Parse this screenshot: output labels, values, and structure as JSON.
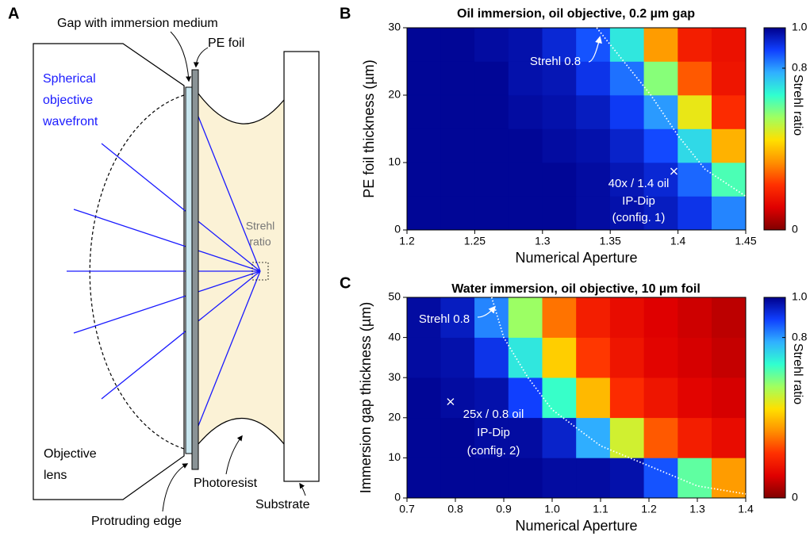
{
  "diagram": {
    "panel": "A",
    "labels": {
      "gap": "Gap with immersion medium",
      "foil": "PE foil",
      "wavefront": [
        "Spherical",
        "objective",
        "wavefront"
      ],
      "strehl": [
        "Strehl",
        "ratio"
      ],
      "lens": [
        "Objective",
        "lens"
      ],
      "photoresist": "Photoresist",
      "substrate": "Substrate",
      "edge": "Protruding edge"
    }
  },
  "chart_data": [
    {
      "type": "heatmap",
      "panel": "B",
      "title": "Oil immersion, oil objective, 0.2 µm gap",
      "xlabel": "Numerical Aperture",
      "ylabel": "PE foil thickness (µm)",
      "colorbar_label": "Strehl ratio",
      "colormap": [
        "#800000",
        "#e00000",
        "#ff3000",
        "#ff9000",
        "#ffe000",
        "#a0ff60",
        "#30ffd0",
        "#30b0ff",
        "#1040ff",
        "#00008c"
      ],
      "x": [
        1.2125,
        1.2375,
        1.2625,
        1.2875,
        1.3125,
        1.3375,
        1.3625,
        1.3875,
        1.4125,
        1.4375
      ],
      "y": [
        2.5,
        7.5,
        12.5,
        17.5,
        22.5,
        27.5
      ],
      "z": [
        [
          0.99,
          0.99,
          0.99,
          0.99,
          0.99,
          0.98,
          0.97,
          0.95,
          0.91,
          0.82
        ],
        [
          0.99,
          0.99,
          0.99,
          0.99,
          0.99,
          0.98,
          0.96,
          0.93,
          0.85,
          0.64
        ],
        [
          0.99,
          0.99,
          0.99,
          0.99,
          0.98,
          0.97,
          0.94,
          0.88,
          0.72,
          0.38
        ],
        [
          0.99,
          0.99,
          0.99,
          0.98,
          0.97,
          0.95,
          0.9,
          0.8,
          0.47,
          0.21
        ],
        [
          0.99,
          0.99,
          0.99,
          0.97,
          0.96,
          0.91,
          0.84,
          0.58,
          0.27,
          0.16
        ],
        [
          0.99,
          0.99,
          0.98,
          0.97,
          0.93,
          0.87,
          0.7,
          0.35,
          0.18,
          0.15
        ]
      ],
      "contour": {
        "x": [
          1.34,
          1.36,
          1.38,
          1.4,
          1.42,
          1.45
        ],
        "y": [
          30,
          25,
          20,
          14,
          9,
          5
        ]
      },
      "marker": {
        "x": 1.397,
        "y": 8.7
      },
      "annotations": [
        "Strehl 0.8",
        "40x / 1.4 oil",
        "IP-Dip",
        "(config. 1)"
      ],
      "xlim": [
        1.2,
        1.45
      ],
      "xticks": [
        1.2,
        1.25,
        1.3,
        1.35,
        1.4,
        1.45
      ],
      "ylim": [
        0,
        30
      ],
      "yticks": [
        0,
        10,
        20,
        30
      ],
      "clim": [
        0,
        1
      ],
      "cticks": [
        0,
        0.8,
        {
          "value": 1,
          "label": "1.0"
        }
      ]
    },
    {
      "type": "heatmap",
      "panel": "C",
      "title": "Water immersion, oil objective, 10 µm foil",
      "xlabel": "Numerical Aperture",
      "ylabel": "Immersion gap thickness (µm)",
      "colorbar_label": "Strehl ratio",
      "colormap": [
        "#800000",
        "#e00000",
        "#ff3000",
        "#ff9000",
        "#ffe000",
        "#a0ff60",
        "#30ffd0",
        "#30b0ff",
        "#1040ff",
        "#00008c"
      ],
      "x": [
        0.735,
        0.805,
        0.875,
        0.945,
        1.015,
        1.085,
        1.155,
        1.225,
        1.295,
        1.365
      ],
      "y": [
        5,
        15,
        25,
        35,
        45
      ],
      "z": [
        [
          0.99,
          0.99,
          0.99,
          0.99,
          0.98,
          0.98,
          0.97,
          0.87,
          0.62,
          0.35
        ],
        [
          0.99,
          0.99,
          0.98,
          0.98,
          0.94,
          0.78,
          0.5,
          0.27,
          0.18,
          0.14
        ],
        [
          0.99,
          0.98,
          0.97,
          0.89,
          0.66,
          0.39,
          0.21,
          0.16,
          0.12,
          0.1
        ],
        [
          0.98,
          0.97,
          0.91,
          0.7,
          0.42,
          0.23,
          0.16,
          0.12,
          0.1,
          0.08
        ],
        [
          0.98,
          0.95,
          0.82,
          0.56,
          0.3,
          0.18,
          0.14,
          0.11,
          0.09,
          0.07
        ]
      ],
      "contour": {
        "x": [
          0.875,
          0.9,
          0.95,
          1.0,
          1.1,
          1.2,
          1.3,
          1.4
        ],
        "y": [
          50,
          40,
          30,
          22,
          13,
          8,
          3,
          1
        ]
      },
      "marker": {
        "x": 0.79,
        "y": 24
      },
      "annotations": [
        "Strehl 0.8",
        "25x / 0.8 oil",
        "IP-Dip",
        "(config. 2)"
      ],
      "xlim": [
        0.7,
        1.4
      ],
      "xticks": [
        0.7,
        0.8,
        0.9,
        {
          "value": 1,
          "label": "1.0"
        },
        1.1,
        1.2,
        1.3,
        1.4
      ],
      "ylim": [
        0,
        50
      ],
      "yticks": [
        0,
        10,
        20,
        30,
        40,
        50
      ],
      "clim": [
        0,
        1
      ],
      "cticks": [
        0,
        0.8,
        {
          "value": 1,
          "label": "1.0"
        }
      ]
    }
  ]
}
